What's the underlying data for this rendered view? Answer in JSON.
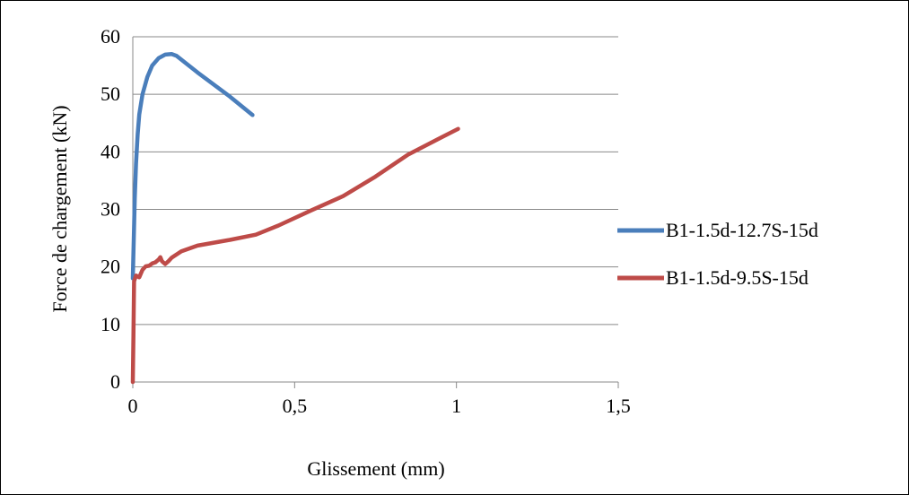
{
  "chart_data": {
    "type": "line",
    "title": "",
    "xlabel": "Glissement (mm)",
    "ylabel": "Force de chargement (kN)",
    "xlim": [
      0,
      1.5
    ],
    "ylim": [
      0,
      60
    ],
    "x_ticks": [
      "0",
      "0,5",
      "1",
      "1,5"
    ],
    "y_ticks": [
      "0",
      "10",
      "20",
      "30",
      "40",
      "50",
      "60"
    ],
    "grid": "horizontal",
    "legend": "right",
    "series": [
      {
        "name": "B1-1.5d-12.7S-15d",
        "color": "#4a7ebb",
        "points": [
          [
            0.0,
            18
          ],
          [
            0.003,
            25
          ],
          [
            0.006,
            32
          ],
          [
            0.01,
            38
          ],
          [
            0.015,
            43
          ],
          [
            0.02,
            46.5
          ],
          [
            0.03,
            50
          ],
          [
            0.045,
            53
          ],
          [
            0.06,
            55
          ],
          [
            0.08,
            56.3
          ],
          [
            0.1,
            56.9
          ],
          [
            0.12,
            57.0
          ],
          [
            0.135,
            56.7
          ],
          [
            0.2,
            53.8
          ],
          [
            0.3,
            49.6
          ],
          [
            0.37,
            46.4
          ]
        ]
      },
      {
        "name": "B1-1.5d-9.5S-15d",
        "color": "#be4b48",
        "points": [
          [
            0.0,
            0
          ],
          [
            0.002,
            8
          ],
          [
            0.004,
            17.5
          ],
          [
            0.01,
            18.5
          ],
          [
            0.02,
            18.2
          ],
          [
            0.03,
            19.5
          ],
          [
            0.04,
            20.1
          ],
          [
            0.05,
            20.2
          ],
          [
            0.06,
            20.6
          ],
          [
            0.07,
            20.8
          ],
          [
            0.08,
            21.3
          ],
          [
            0.085,
            21.7
          ],
          [
            0.09,
            21.0
          ],
          [
            0.1,
            20.5
          ],
          [
            0.11,
            21.0
          ],
          [
            0.12,
            21.6
          ],
          [
            0.15,
            22.7
          ],
          [
            0.2,
            23.7
          ],
          [
            0.3,
            24.7
          ],
          [
            0.38,
            25.6
          ],
          [
            0.45,
            27.2
          ],
          [
            0.55,
            29.8
          ],
          [
            0.65,
            32.3
          ],
          [
            0.75,
            35.7
          ],
          [
            0.85,
            39.5
          ],
          [
            0.95,
            42.4
          ],
          [
            1.005,
            44.0
          ]
        ]
      }
    ]
  }
}
